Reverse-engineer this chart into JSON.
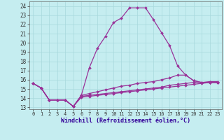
{
  "xlabel": "Windchill (Refroidissement éolien,°C)",
  "background_color": "#c5edf0",
  "grid_color": "#a8d8dc",
  "line_color": "#993399",
  "x_ticks": [
    0,
    1,
    2,
    3,
    4,
    5,
    6,
    7,
    8,
    9,
    10,
    11,
    12,
    13,
    14,
    15,
    16,
    17,
    18,
    19,
    20,
    21,
    22,
    23
  ],
  "y_ticks": [
    13,
    14,
    15,
    16,
    17,
    18,
    19,
    20,
    21,
    22,
    23,
    24
  ],
  "ylim": [
    12.8,
    24.5
  ],
  "xlim": [
    -0.5,
    23.5
  ],
  "series": [
    {
      "x": [
        0,
        1,
        2,
        3,
        4,
        5,
        6,
        7,
        8,
        9,
        10,
        11,
        12,
        13,
        14,
        15,
        16,
        17,
        18,
        19,
        20,
        21,
        22,
        23
      ],
      "y": [
        15.6,
        15.1,
        13.8,
        13.8,
        13.8,
        13.1,
        14.3,
        17.3,
        19.4,
        20.7,
        22.2,
        22.7,
        23.8,
        23.8,
        23.8,
        22.5,
        21.1,
        19.7,
        17.5,
        16.5,
        15.9,
        15.7,
        15.7,
        15.7
      ]
    },
    {
      "x": [
        0,
        1,
        2,
        3,
        4,
        5,
        6,
        7,
        8,
        9,
        10,
        11,
        12,
        13,
        14,
        15,
        16,
        17,
        18,
        19,
        20,
        21,
        22,
        23
      ],
      "y": [
        15.6,
        15.1,
        13.8,
        13.8,
        13.8,
        13.1,
        14.3,
        14.5,
        14.7,
        14.9,
        15.1,
        15.3,
        15.4,
        15.6,
        15.7,
        15.8,
        16.0,
        16.2,
        16.5,
        16.5,
        15.9,
        15.7,
        15.7,
        15.7
      ]
    },
    {
      "x": [
        0,
        1,
        2,
        3,
        4,
        5,
        6,
        7,
        8,
        9,
        10,
        11,
        12,
        13,
        14,
        15,
        16,
        17,
        18,
        19,
        20,
        21,
        22,
        23
      ],
      "y": [
        15.6,
        15.1,
        13.8,
        13.8,
        13.8,
        13.1,
        14.2,
        14.3,
        14.4,
        14.5,
        14.6,
        14.7,
        14.8,
        14.9,
        15.0,
        15.1,
        15.2,
        15.4,
        15.5,
        15.6,
        15.7,
        15.7,
        15.8,
        15.8
      ]
    },
    {
      "x": [
        0,
        1,
        2,
        3,
        4,
        5,
        6,
        7,
        8,
        9,
        10,
        11,
        12,
        13,
        14,
        15,
        16,
        17,
        18,
        19,
        20,
        21,
        22,
        23
      ],
      "y": [
        15.6,
        15.1,
        13.8,
        13.8,
        13.8,
        13.1,
        14.1,
        14.2,
        14.3,
        14.4,
        14.5,
        14.6,
        14.7,
        14.8,
        14.9,
        15.0,
        15.1,
        15.2,
        15.3,
        15.4,
        15.5,
        15.6,
        15.7,
        15.7
      ]
    }
  ]
}
